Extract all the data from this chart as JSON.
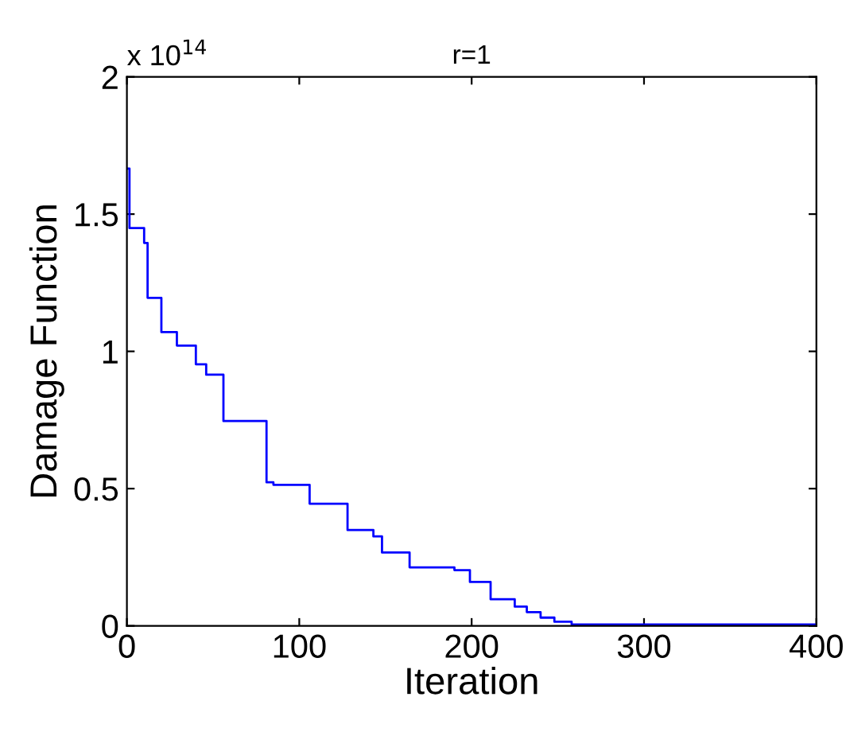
{
  "chart_data": {
    "type": "step",
    "title": "r=1",
    "xlabel": "Iteration",
    "ylabel": "Damage Function",
    "annotations": [
      "x 10$^{14}$"
    ],
    "x": [
      0,
      1.5,
      10,
      12,
      20,
      29,
      40,
      46,
      56,
      81,
      85,
      106,
      128,
      143,
      148,
      164,
      190,
      199,
      211,
      225,
      232,
      240,
      248,
      258,
      400
    ],
    "series": [
      {
        "color": "#0000ff",
        "values": [
          1.666,
          1.449,
          1.395,
          1.195,
          1.07,
          1.021,
          0.953,
          0.915,
          0.746,
          0.523,
          0.514,
          0.445,
          0.349,
          0.326,
          0.267,
          0.213,
          0.203,
          0.16,
          0.097,
          0.07,
          0.05,
          0.03,
          0.015,
          0.005,
          0.005
        ]
      }
    ],
    "xlim": [
      0,
      400
    ],
    "ylim": [
      0,
      2
    ],
    "xticks": [
      0,
      100,
      200,
      300,
      400
    ],
    "yticks": [
      0,
      0.5,
      1,
      1.5,
      2
    ],
    "grid": false,
    "legend": false
  }
}
